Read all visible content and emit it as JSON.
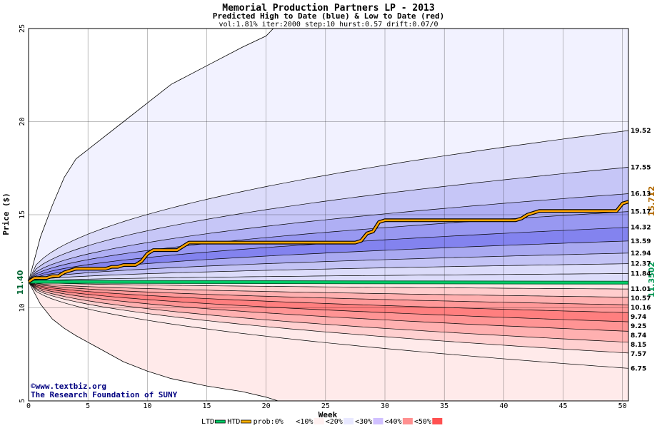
{
  "chart_data": {
    "type": "area",
    "title": "Memorial Production Partners LP - 2013",
    "subtitle": "Predicted High to Date (blue) &  Low to Date (red)",
    "params": "vol:1.81% iter:2000 step:10 hurst:0.57 drift:0.07/0",
    "xlabel": "Week",
    "ylabel": "Price ($)",
    "xlim": [
      0,
      50.5
    ],
    "ylim": [
      5,
      25
    ],
    "x_ticks": [
      "0",
      "5",
      "10",
      "15",
      "20",
      "25",
      "30",
      "35",
      "40",
      "45",
      "50"
    ],
    "y_ticks": [
      "5",
      "10",
      "15",
      "20",
      "25"
    ],
    "start_price": 11.4,
    "start_label": "11.40",
    "ltd_current": 11.3502,
    "ltd_label": "11.3502",
    "htd_current": 15.712,
    "htd_label": "15.712",
    "band_end_values": [
      19.52,
      17.55,
      16.13,
      15.17,
      14.32,
      13.59,
      12.94,
      12.37,
      11.84,
      11.01,
      10.57,
      10.16,
      9.74,
      9.25,
      8.74,
      8.15,
      7.57,
      6.75
    ],
    "band_end_labels": [
      "19.52",
      "17.55",
      "16.13",
      "15.17",
      "14.32",
      "13.59",
      "12.94",
      "12.37",
      "11.84",
      "11.01",
      "10.57",
      "10.16",
      "9.74",
      "9.25",
      "8.74",
      "8.15",
      "7.57",
      "6.75"
    ],
    "envelope": {
      "upper": [
        [
          0,
          11.4
        ],
        [
          1,
          13.8
        ],
        [
          2,
          15.5
        ],
        [
          3,
          17.0
        ],
        [
          4,
          18.0
        ],
        [
          6,
          19.0
        ],
        [
          8,
          20.0
        ],
        [
          10,
          21.0
        ],
        [
          12,
          22.0
        ],
        [
          15,
          23.0
        ],
        [
          18,
          24.0
        ],
        [
          20,
          24.6
        ],
        [
          20.6,
          25
        ]
      ],
      "lower": [
        [
          0,
          11.4
        ],
        [
          1,
          10.2
        ],
        [
          2,
          9.4
        ],
        [
          3,
          8.9
        ],
        [
          4,
          8.5
        ],
        [
          6,
          7.8
        ],
        [
          8,
          7.1
        ],
        [
          10,
          6.6
        ],
        [
          12,
          6.2
        ],
        [
          15,
          5.8
        ],
        [
          18,
          5.5
        ],
        [
          20,
          5.2
        ],
        [
          21,
          5.0
        ]
      ]
    },
    "htd_path": [
      [
        0,
        11.4
      ],
      [
        0.5,
        11.6
      ],
      [
        1.5,
        11.6
      ],
      [
        2,
        11.7
      ],
      [
        2.5,
        11.7
      ],
      [
        3,
        11.9
      ],
      [
        3.5,
        12.0
      ],
      [
        4,
        12.1
      ],
      [
        6.5,
        12.1
      ],
      [
        7,
        12.2
      ],
      [
        7.5,
        12.2
      ],
      [
        8,
        12.3
      ],
      [
        9,
        12.3
      ],
      [
        9.5,
        12.5
      ],
      [
        10,
        12.9
      ],
      [
        10.5,
        13.1
      ],
      [
        12.5,
        13.1
      ],
      [
        13,
        13.3
      ],
      [
        13.5,
        13.5
      ],
      [
        27.5,
        13.5
      ],
      [
        28,
        13.6
      ],
      [
        28.5,
        14.0
      ],
      [
        29,
        14.1
      ],
      [
        29.5,
        14.6
      ],
      [
        30,
        14.7
      ],
      [
        41,
        14.7
      ],
      [
        41.5,
        14.8
      ],
      [
        42,
        15.0
      ],
      [
        42.5,
        15.1
      ],
      [
        43,
        15.2
      ],
      [
        49.5,
        15.2
      ],
      [
        50,
        15.6
      ],
      [
        50.5,
        15.7
      ]
    ],
    "ltd_path": [
      [
        0,
        11.4
      ],
      [
        50.5,
        11.35
      ]
    ],
    "legend": [
      {
        "label": "LTD",
        "color": "#00cc66"
      },
      {
        "label": "HTD",
        "color": "#ffb000"
      },
      {
        "label": "prob:0%",
        "color": "#ffffff"
      },
      {
        "label": "<10%",
        "color": "#fff0f0"
      },
      {
        "label": "<20%",
        "color": "#e8e8ff"
      },
      {
        "label": "<30%",
        "color": "#d0c0ff"
      },
      {
        "label": "<40%",
        "color": "#ff9090"
      },
      {
        "label": "<50%",
        "color": "#ff5050"
      }
    ],
    "credits": [
      "©www.textbiz.org",
      "The Research Foundation of SUNY"
    ],
    "colors": {
      "blue_bands": [
        "#f2f2ff",
        "#dcdcfa",
        "#c6c6f7",
        "#afaff4",
        "#9898f1",
        "#8383ef",
        "#a9a9f1",
        "#c3c3f5",
        "#dcdcfa"
      ],
      "red_bands": [
        "#ffe5e5",
        "#ffcdcd",
        "#ffb0b0",
        "#ff9898",
        "#ff7f7f",
        "#ff9494",
        "#ffb0b0",
        "#ffd0d0",
        "#ffeaea"
      ],
      "htd": "#ffa500",
      "ltd": "#00cc66",
      "grid": "#000000",
      "credit": "#000080"
    },
    "grid": true
  }
}
